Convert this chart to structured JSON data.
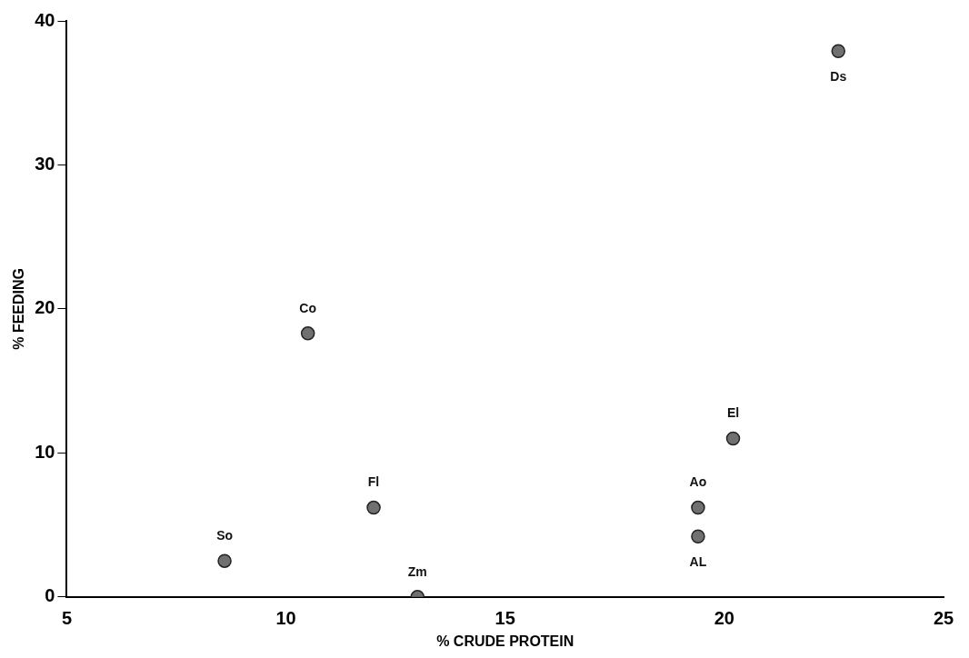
{
  "chart_data": {
    "type": "scatter",
    "xlabel": "% CRUDE PROTEIN",
    "ylabel": "% FEEDING",
    "x": [
      8.6,
      10.5,
      12.0,
      13.0,
      19.4,
      19.4,
      20.2,
      22.6
    ],
    "values": [
      2.5,
      18.3,
      6.2,
      0,
      6.2,
      4.2,
      11.0,
      37.9
    ],
    "color": "#707070",
    "marker": "circle",
    "grid": false,
    "legend": false,
    "xlim": [
      5,
      25
    ],
    "xticks": [
      5,
      10,
      15,
      20,
      25
    ],
    "ylim": [
      0,
      40
    ],
    "yticks": [
      0,
      10,
      20,
      30,
      40
    ],
    "annotations": [
      {
        "text": "So",
        "x": 8.6,
        "y": 2.5
      },
      {
        "text": "Co",
        "x": 10.5,
        "y": 18.3
      },
      {
        "text": "Fl",
        "x": 12.0,
        "y": 6.2
      },
      {
        "text": "Zm",
        "x": 13.0,
        "y": 0
      },
      {
        "text": "Ao",
        "x": 19.4,
        "y": 6.2
      },
      {
        "text": "AL",
        "x": 19.4,
        "y": 4.2
      },
      {
        "text": "El",
        "x": 20.2,
        "y": 11.0
      },
      {
        "text": "Ds",
        "x": 22.6,
        "y": 37.9
      }
    ]
  }
}
